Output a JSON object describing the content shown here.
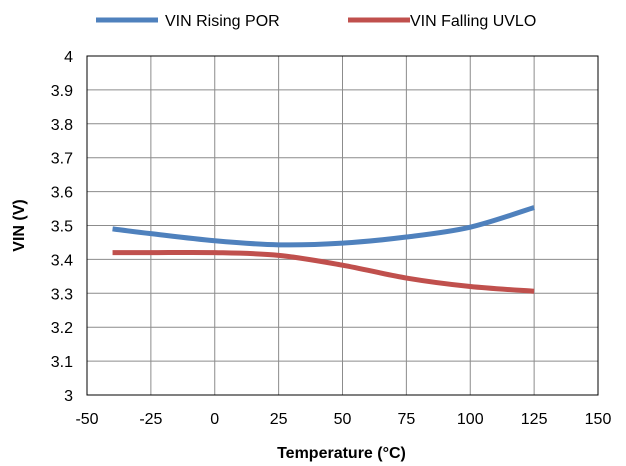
{
  "chart_data": {
    "type": "line",
    "title": "",
    "xlabel": "Temperature (°C)",
    "ylabel": "VIN (V)",
    "xlim": [
      -50,
      150
    ],
    "ylim": [
      3,
      4
    ],
    "xticks": [
      -50,
      -25,
      0,
      25,
      50,
      75,
      100,
      125,
      150
    ],
    "xtick_labels": [
      "-50",
      "-25",
      "0",
      "25",
      "50",
      "75",
      "100",
      "125",
      "150"
    ],
    "yticks": [
      3,
      3.1,
      3.2,
      3.3,
      3.4,
      3.5,
      3.6,
      3.7,
      3.8,
      3.9,
      4
    ],
    "ytick_labels": [
      "3",
      "3.1",
      "3.2",
      "3.3",
      "3.4",
      "3.5",
      "3.6",
      "3.7",
      "3.8",
      "3.9",
      "4"
    ],
    "grid": true,
    "legend_position": "top",
    "series": [
      {
        "name": "VIN Rising POR",
        "color": "#4F81BD",
        "x": [
          -40,
          -25,
          0,
          25,
          50,
          75,
          100,
          125
        ],
        "y": [
          3.49,
          3.476,
          3.455,
          3.443,
          3.448,
          3.466,
          3.495,
          3.553
        ]
      },
      {
        "name": "VIN Falling UVLO",
        "color": "#C0504D",
        "x": [
          -40,
          -25,
          0,
          25,
          50,
          75,
          100,
          125
        ],
        "y": [
          3.42,
          3.42,
          3.42,
          3.412,
          3.383,
          3.345,
          3.32,
          3.306
        ]
      }
    ]
  }
}
